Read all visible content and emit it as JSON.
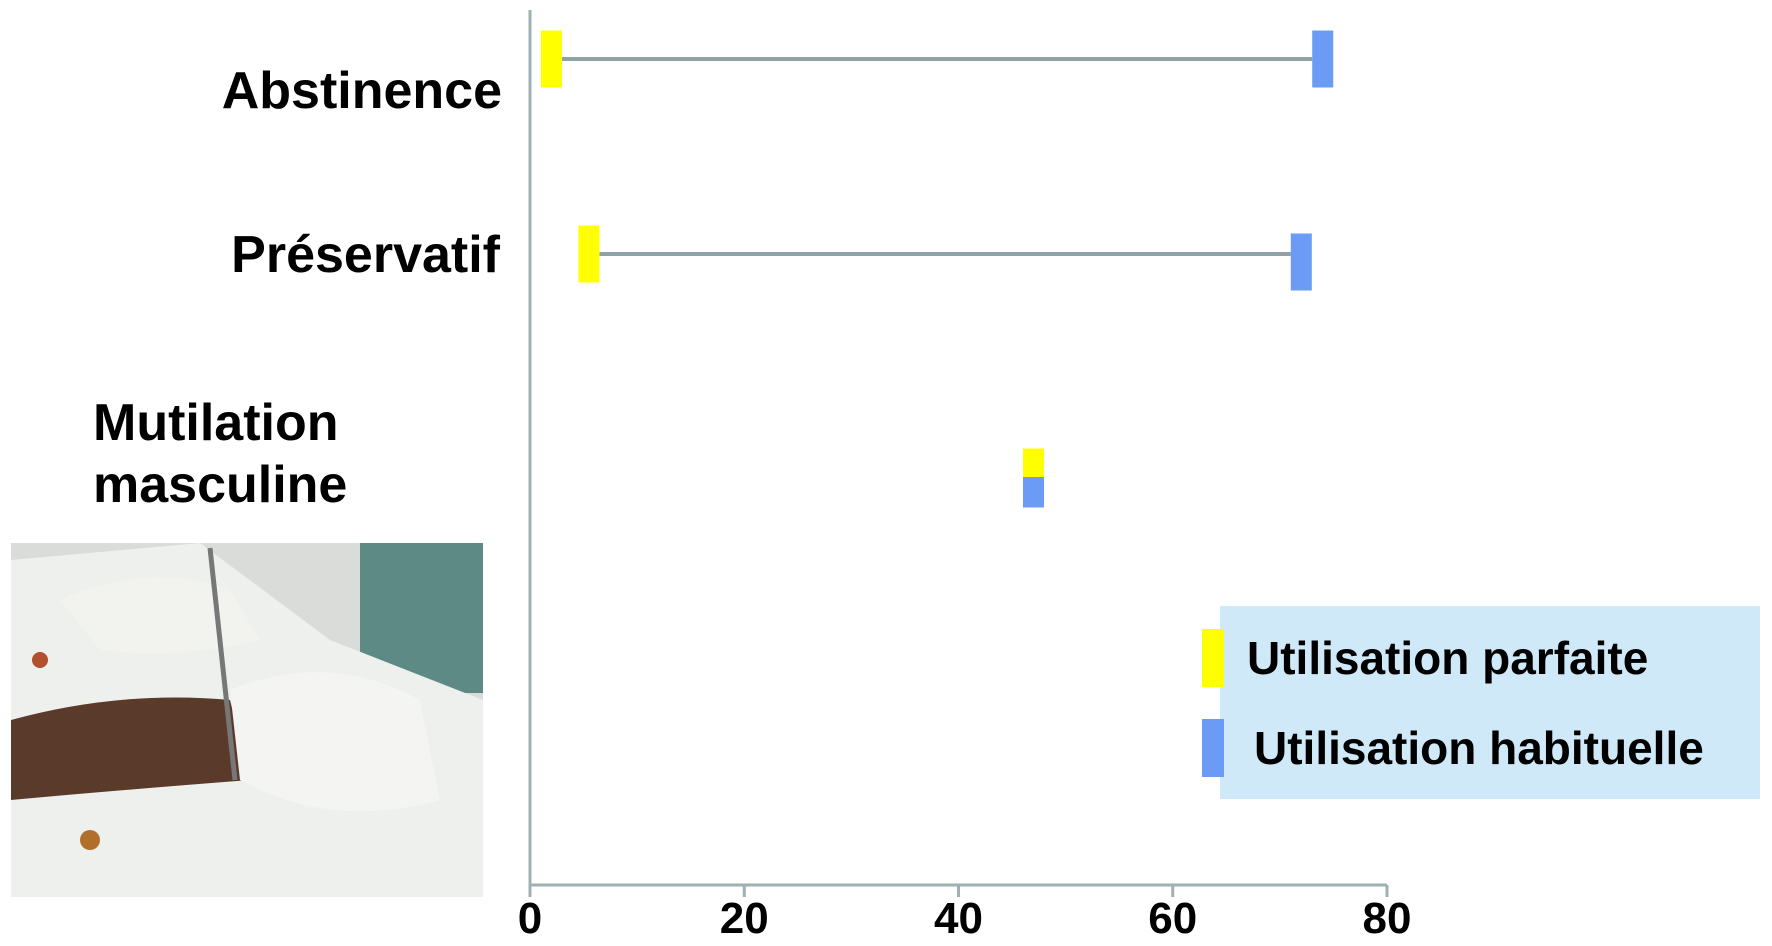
{
  "chart_data": {
    "type": "dumbbell",
    "categories": [
      "Abstinence",
      "Préservatif",
      "Mutilation masculine"
    ],
    "series": [
      {
        "name": "Utilisation parfaite",
        "color": "#ffff00",
        "values": [
          2,
          5.5,
          47
        ]
      },
      {
        "name": "Utilisation habituelle",
        "color": "#6b9bf5",
        "values": [
          74,
          72,
          47
        ]
      }
    ],
    "xlim": [
      0,
      80
    ],
    "xticks": [
      0,
      20,
      40,
      60,
      80
    ],
    "connector_color": "#8fa3a6",
    "legend_position": "lower right",
    "legend_background": "#cfe9f8"
  }
}
